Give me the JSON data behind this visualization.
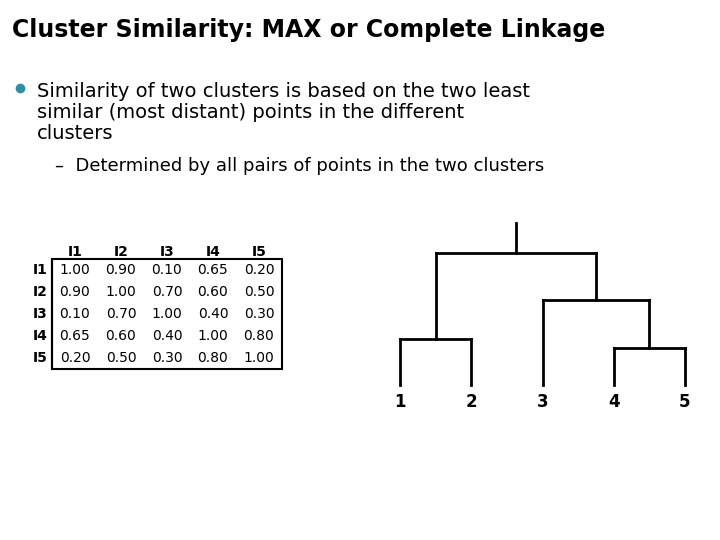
{
  "title": "Cluster Similarity: MAX or Complete Linkage",
  "bullet_text_line1": "Similarity of two clusters is based on the two least",
  "bullet_text_line2": "similar (most distant) points in the different",
  "bullet_text_line3": "clusters",
  "sub_bullet": "Determined by all pairs of points in the two clusters",
  "bullet_color": "#2e8fa3",
  "background_color": "#ffffff",
  "title_fontsize": 17,
  "body_fontsize": 14,
  "sub_fontsize": 13,
  "matrix_labels": [
    "I1",
    "I2",
    "I3",
    "I4",
    "I5"
  ],
  "matrix_data": [
    [
      1.0,
      0.9,
      0.1,
      0.65,
      0.2
    ],
    [
      0.9,
      1.0,
      0.7,
      0.6,
      0.5
    ],
    [
      0.1,
      0.7,
      1.0,
      0.4,
      0.3
    ],
    [
      0.65,
      0.6,
      0.4,
      1.0,
      0.8
    ],
    [
      0.2,
      0.5,
      0.3,
      0.8,
      1.0
    ]
  ],
  "mat_label_fontsize": 10,
  "mat_data_fontsize": 10,
  "dend_leaf_fontsize": 12,
  "dend_linewidth": 2.0
}
